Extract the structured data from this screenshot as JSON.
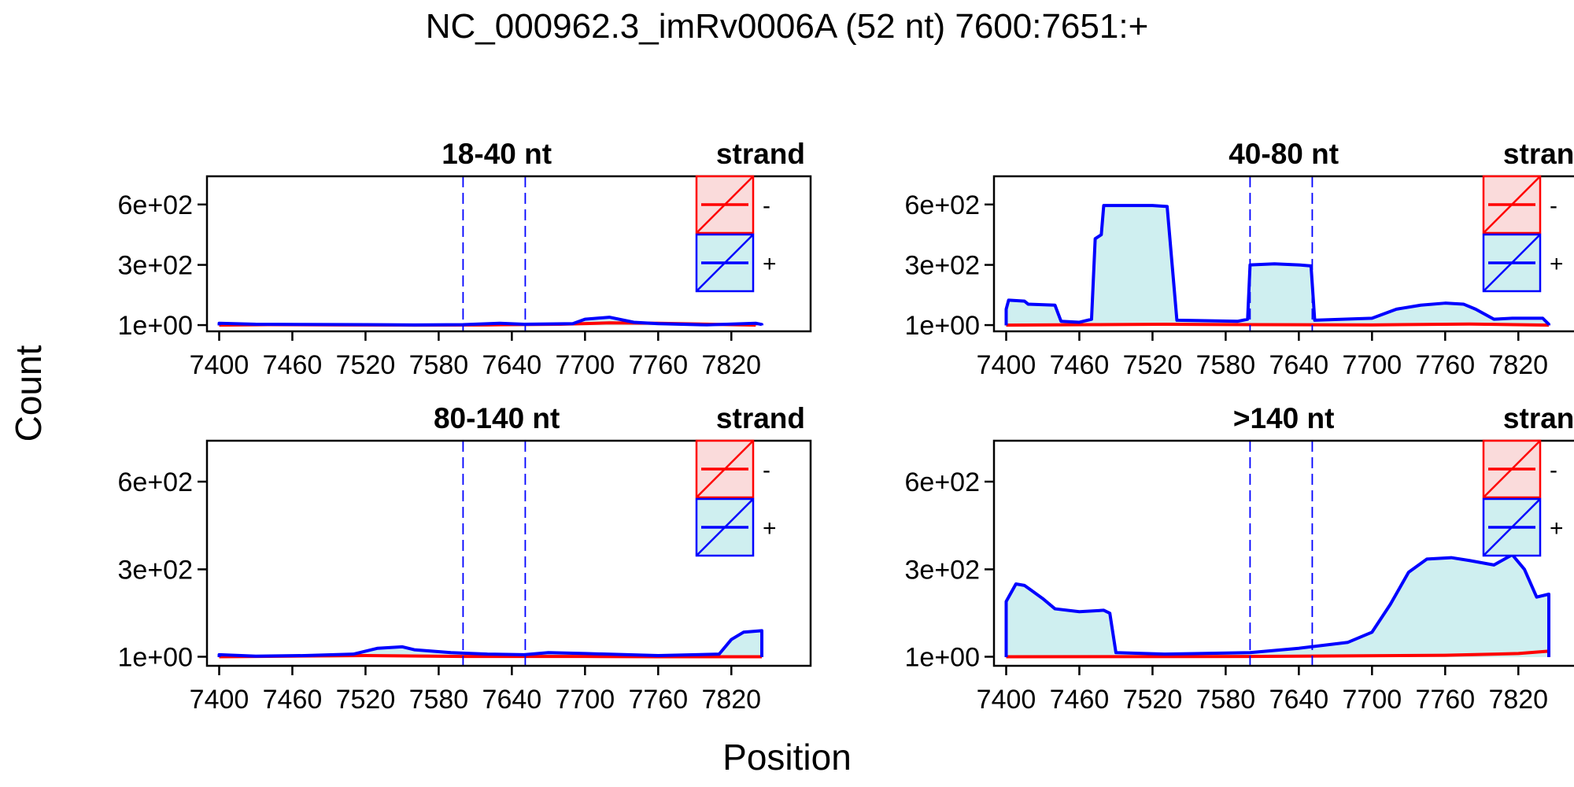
{
  "figure": {
    "title": "NC_000962.3_imRv0006A (52 nt) 7600:7651:+",
    "xlabel": "Position",
    "ylabel": "Count"
  },
  "colors": {
    "minus_line": "#FF0000",
    "minus_fill": "#FADBDB",
    "plus_line": "#0000FF",
    "plus_fill": "#CFEFF0",
    "region_marker": "#0000FF"
  },
  "chart_data": {
    "type": "area",
    "layout": "2x2 panels",
    "x_ticks": [
      7400,
      7460,
      7520,
      7580,
      7640,
      7700,
      7760,
      7820
    ],
    "xlim": [
      7390,
      7885
    ],
    "y_ticks": [
      {
        "value": 1,
        "label": "1e+00"
      },
      {
        "value": 300,
        "label": "3e+02"
      },
      {
        "value": 600,
        "label": "6e+02"
      }
    ],
    "region_markers": [
      7600,
      7651
    ],
    "legend": {
      "title": "strand",
      "entries": [
        {
          "name": "-",
          "color": "#FF0000"
        },
        {
          "name": "+",
          "color": "#0000FF"
        }
      ]
    },
    "panels": [
      {
        "title": "18-40 nt",
        "ylim": [
          -30,
          740
        ],
        "series": [
          {
            "name": "-",
            "points": [
              [
                7400,
                1
              ],
              [
                7440,
                3
              ],
              [
                7500,
                2
              ],
              [
                7560,
                1
              ],
              [
                7620,
                2
              ],
              [
                7680,
                5
              ],
              [
                7720,
                12
              ],
              [
                7760,
                10
              ],
              [
                7840,
                1
              ]
            ]
          },
          {
            "name": "+",
            "points": [
              [
                7400,
                10
              ],
              [
                7430,
                5
              ],
              [
                7470,
                4
              ],
              [
                7520,
                3
              ],
              [
                7560,
                2
              ],
              [
                7600,
                3
              ],
              [
                7630,
                10
              ],
              [
                7650,
                5
              ],
              [
                7690,
                8
              ],
              [
                7700,
                30
              ],
              [
                7720,
                40
              ],
              [
                7740,
                15
              ],
              [
                7760,
                8
              ],
              [
                7800,
                2
              ],
              [
                7840,
                10
              ],
              [
                7845,
                4
              ]
            ]
          }
        ]
      },
      {
        "title": "40-80 nt",
        "ylim": [
          -30,
          740
        ],
        "series": [
          {
            "name": "-",
            "points": [
              [
                7400,
                1
              ],
              [
                7470,
                3
              ],
              [
                7530,
                5
              ],
              [
                7600,
                3
              ],
              [
                7700,
                2
              ],
              [
                7780,
                6
              ],
              [
                7845,
                1
              ]
            ]
          },
          {
            "name": "+",
            "points": [
              [
                7400,
                80
              ],
              [
                7402,
                125
              ],
              [
                7415,
                120
              ],
              [
                7418,
                105
              ],
              [
                7440,
                100
              ],
              [
                7445,
                20
              ],
              [
                7460,
                15
              ],
              [
                7470,
                30
              ],
              [
                7473,
                430
              ],
              [
                7478,
                450
              ],
              [
                7480,
                595
              ],
              [
                7520,
                595
              ],
              [
                7532,
                590
              ],
              [
                7540,
                25
              ],
              [
                7590,
                20
              ],
              [
                7598,
                30
              ],
              [
                7600,
                300
              ],
              [
                7620,
                305
              ],
              [
                7640,
                300
              ],
              [
                7650,
                295
              ],
              [
                7653,
                25
              ],
              [
                7700,
                35
              ],
              [
                7720,
                80
              ],
              [
                7740,
                100
              ],
              [
                7760,
                110
              ],
              [
                7775,
                105
              ],
              [
                7785,
                80
              ],
              [
                7800,
                30
              ],
              [
                7815,
                35
              ],
              [
                7840,
                35
              ],
              [
                7845,
                5
              ]
            ]
          }
        ]
      },
      {
        "title": "80-140 nt",
        "ylim": [
          -30,
          740
        ],
        "series": [
          {
            "name": "-",
            "points": [
              [
                7400,
                1
              ],
              [
                7460,
                3
              ],
              [
                7520,
                5
              ],
              [
                7600,
                2
              ],
              [
                7700,
                2
              ],
              [
                7760,
                1
              ],
              [
                7845,
                1
              ]
            ]
          },
          {
            "name": "+",
            "points": [
              [
                7400,
                8
              ],
              [
                7430,
                3
              ],
              [
                7470,
                5
              ],
              [
                7510,
                10
              ],
              [
                7530,
                30
              ],
              [
                7550,
                35
              ],
              [
                7560,
                25
              ],
              [
                7590,
                15
              ],
              [
                7620,
                10
              ],
              [
                7650,
                8
              ],
              [
                7670,
                15
              ],
              [
                7700,
                12
              ],
              [
                7760,
                5
              ],
              [
                7810,
                10
              ],
              [
                7820,
                60
              ],
              [
                7830,
                85
              ],
              [
                7845,
                90
              ]
            ]
          }
        ]
      },
      {
        "title": ">140 nt",
        "ylim": [
          -30,
          740
        ],
        "series": [
          {
            "name": "-",
            "points": [
              [
                7400,
                1
              ],
              [
                7600,
                2
              ],
              [
                7760,
                6
              ],
              [
                7820,
                12
              ],
              [
                7845,
                20
              ]
            ]
          },
          {
            "name": "+",
            "points": [
              [
                7400,
                190
              ],
              [
                7408,
                250
              ],
              [
                7415,
                245
              ],
              [
                7420,
                230
              ],
              [
                7430,
                200
              ],
              [
                7440,
                165
              ],
              [
                7460,
                155
              ],
              [
                7480,
                160
              ],
              [
                7485,
                150
              ],
              [
                7490,
                15
              ],
              [
                7530,
                10
              ],
              [
                7600,
                15
              ],
              [
                7640,
                30
              ],
              [
                7680,
                50
              ],
              [
                7700,
                85
              ],
              [
                7715,
                180
              ],
              [
                7730,
                290
              ],
              [
                7745,
                335
              ],
              [
                7765,
                340
              ],
              [
                7780,
                330
              ],
              [
                7800,
                315
              ],
              [
                7815,
                350
              ],
              [
                7825,
                300
              ],
              [
                7835,
                205
              ],
              [
                7845,
                215
              ]
            ]
          }
        ]
      }
    ]
  }
}
